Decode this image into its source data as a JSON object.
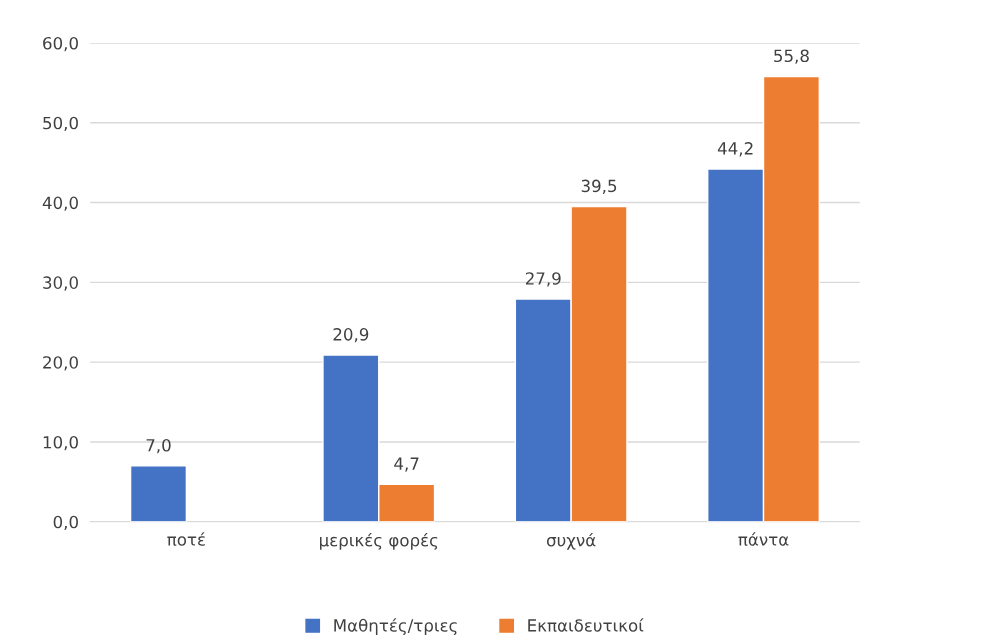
{
  "chart_data": {
    "type": "bar",
    "categories": [
      "ποτέ",
      "μερικές φορές",
      "συχνά",
      "πάντα"
    ],
    "series": [
      {
        "name": "Μαθητές/τριες",
        "color": "#4472c4",
        "values": [
          7.0,
          20.9,
          27.9,
          44.2
        ],
        "value_labels": [
          "7,0",
          "20,9",
          "27,9",
          "44,2"
        ]
      },
      {
        "name": "Εκπαιδευτικοί",
        "color": "#ed7d31",
        "values": [
          null,
          4.7,
          39.5,
          55.8
        ],
        "value_labels": [
          null,
          "4,7",
          "39,5",
          "55,8"
        ]
      }
    ],
    "ylim": [
      0,
      60
    ],
    "yticks": [
      {
        "value": 0,
        "label": "0,0"
      },
      {
        "value": 10,
        "label": "10,0"
      },
      {
        "value": 20,
        "label": "20,0"
      },
      {
        "value": 30,
        "label": "30,0"
      },
      {
        "value": 40,
        "label": "40,0"
      },
      {
        "value": 50,
        "label": "50,0"
      },
      {
        "value": 60,
        "label": "60,0"
      }
    ],
    "grid": "y",
    "legend": "bottom"
  }
}
